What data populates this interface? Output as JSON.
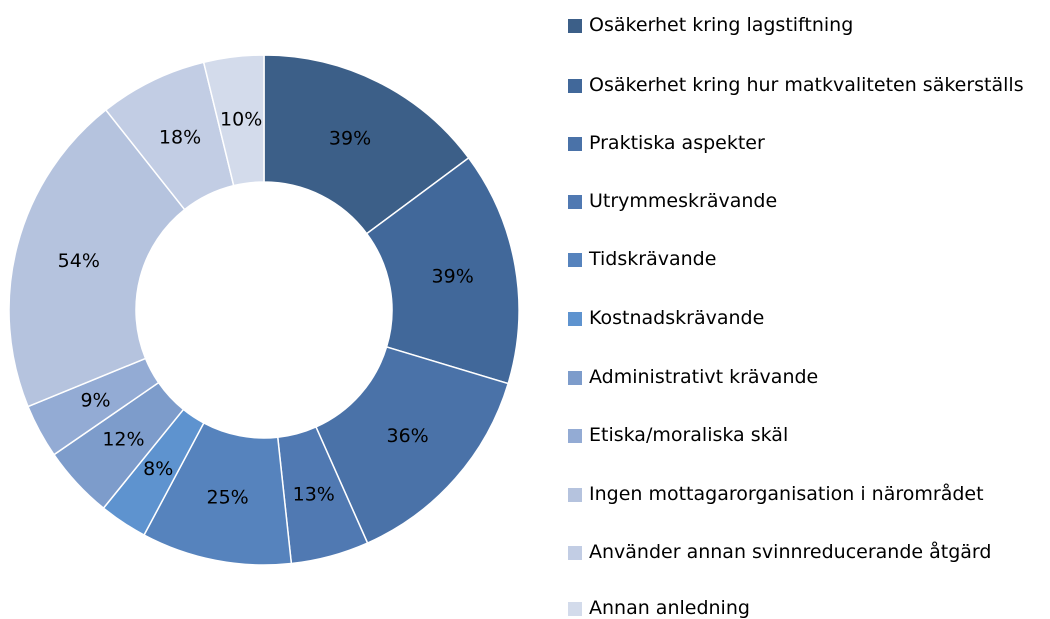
{
  "chart_data": {
    "type": "donut",
    "categories": [
      "Osäkerhet kring lagstiftning",
      "Osäkerhet kring hur matkvaliteten säkerställs",
      "Praktiska aspekter",
      "Utrymmeskrävande",
      "Tidskrävande",
      "Kostnadskrävande",
      "Administrativt krävande",
      "Etiska/moraliska skäl",
      "Ingen mottagarorganisation i närområdet",
      "Använder annan svinnreducerande åtgärd",
      "Annan anledning"
    ],
    "values": [
      39,
      39,
      36,
      13,
      25,
      8,
      12,
      9,
      54,
      18,
      10
    ],
    "value_labels": [
      "39%",
      "39%",
      "36%",
      "13%",
      "25%",
      "8%",
      "12%",
      "9%",
      "54%",
      "18%",
      "10%"
    ],
    "colors": [
      "#3c5f88",
      "#41689a",
      "#4a72a8",
      "#5079b2",
      "#5683bd",
      "#5e93cf",
      "#7d9ccb",
      "#93abd4",
      "#b5c3de",
      "#c2cde4",
      "#d3dbeb"
    ],
    "legend": "right"
  }
}
